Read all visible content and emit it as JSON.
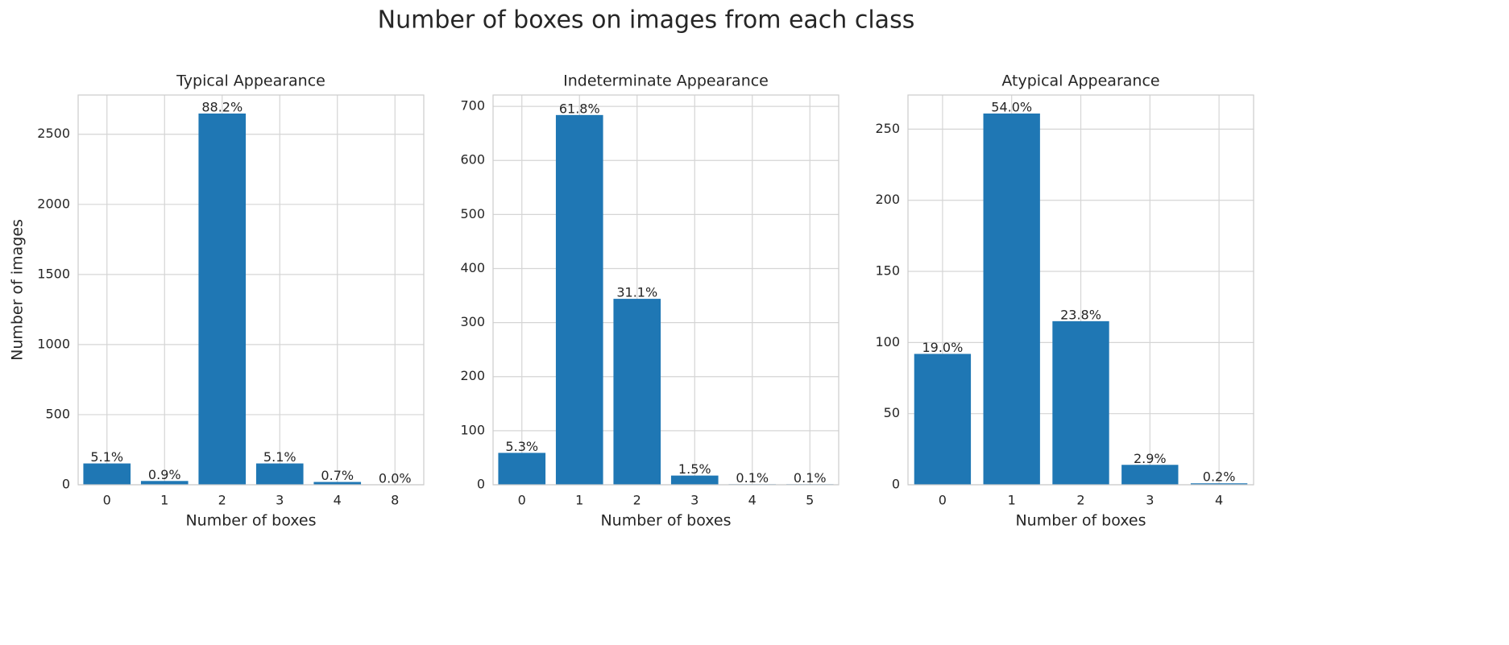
{
  "title": "Number of boxes on images from each class",
  "chart_data": [
    {
      "type": "bar",
      "title": "Typical Appearance",
      "xlabel": "Number of boxes",
      "ylabel": "Number of images",
      "categories": [
        "0",
        "1",
        "2",
        "3",
        "4",
        "8"
      ],
      "values": [
        152,
        27,
        2648,
        152,
        20,
        1
      ],
      "annotations": [
        "5.1%",
        "0.9%",
        "88.2%",
        "5.1%",
        "0.7%",
        "0.0%"
      ],
      "color": "#1f77b4",
      "ylim": [
        0,
        2780
      ],
      "yticks": [
        0,
        500,
        1000,
        1500,
        2000,
        2500
      ],
      "grid": true
    },
    {
      "type": "bar",
      "title": "Indeterminate Appearance",
      "xlabel": "Number of boxes",
      "categories": [
        "0",
        "1",
        "2",
        "3",
        "4",
        "5"
      ],
      "values": [
        59,
        684,
        344,
        17,
        1,
        1
      ],
      "annotations": [
        "5.3%",
        "61.8%",
        "31.1%",
        "1.5%",
        "0.1%",
        "0.1%"
      ],
      "color": "#1f77b4",
      "ylim": [
        0,
        721
      ],
      "yticks": [
        0,
        100,
        200,
        300,
        400,
        500,
        600,
        700
      ],
      "grid": true
    },
    {
      "type": "bar",
      "title": "Atypical Appearance",
      "xlabel": "Number of boxes",
      "categories": [
        "0",
        "1",
        "2",
        "3",
        "4"
      ],
      "values": [
        92,
        261,
        115,
        14,
        1
      ],
      "annotations": [
        "19.0%",
        "54.0%",
        "23.8%",
        "2.9%",
        "0.2%"
      ],
      "color": "#1f77b4",
      "ylim": [
        0,
        274
      ],
      "yticks": [
        0,
        50,
        100,
        150,
        200,
        250
      ],
      "grid": true
    }
  ]
}
